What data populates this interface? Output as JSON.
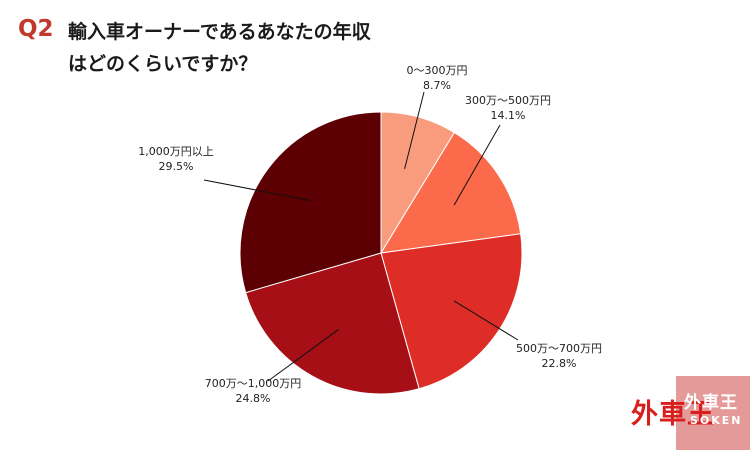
{
  "header": {
    "question_number": "Q2",
    "title_line1": "輸入車オーナーであるあなたの年収",
    "title_line2": "はどのくらいですか？"
  },
  "chart_data": {
    "type": "pie",
    "start_angle_deg": 0,
    "direction": "clockwise",
    "slices": [
      {
        "label": "0～300万円",
        "value": 8.7,
        "value_label": "8.7%",
        "color": "#f99b7d"
      },
      {
        "label": "300万～500万円",
        "value": 14.1,
        "value_label": "14.1%",
        "color": "#fb6a4a"
      },
      {
        "label": "500万～700万円",
        "value": 22.8,
        "value_label": "22.8%",
        "color": "#de2d26"
      },
      {
        "label": "700万～1,000万円",
        "value": 24.8,
        "value_label": "24.8%",
        "color": "#a50f15"
      },
      {
        "label": "1,000万円以上",
        "value": 29.5,
        "value_label": "29.5%",
        "color": "#5c0003"
      }
    ]
  },
  "logo": {
    "main_text": "外車王",
    "sub_text": "SOKEN"
  }
}
